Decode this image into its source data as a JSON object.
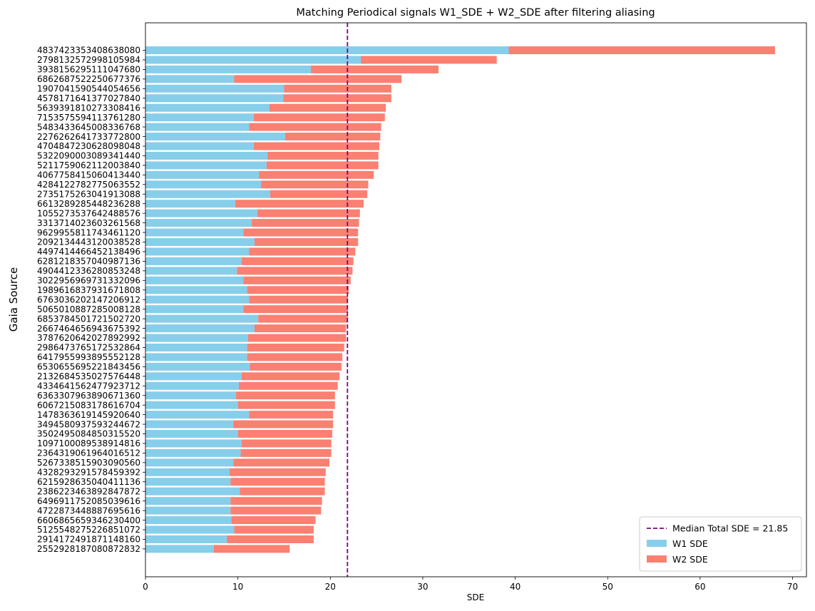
{
  "chart_data": {
    "type": "bar",
    "orientation": "horizontal",
    "stacked": true,
    "title": "Matching Periodical signals W1_SDE + W2_SDE after filtering aliasing",
    "xlabel": "SDE",
    "ylabel": "Gaia Source",
    "xlim": [
      0,
      71.5
    ],
    "xticks": [
      0,
      10,
      20,
      30,
      40,
      50,
      60,
      70
    ],
    "grid": false,
    "legend_position": "lower-right",
    "categories": [
      "4837423353408638080",
      "2798132572998105984",
      "3938156295111047680",
      "6862687522250677376",
      "1907041590544054656",
      "4578171641377027840",
      "5639391810273308416",
      "7153575594113761280",
      "5483433645008336768",
      "2276262641733772800",
      "4704847230628098048",
      "5322090003089341440",
      "5211759062112003840",
      "4067758415060413440",
      "4284122782775063552",
      "2735175263041913088",
      "6613289285448236288",
      "1055273537642488576",
      "3313714023603261568",
      "9629955811743461120",
      "2092134443120038528",
      "4497414466452138496",
      "6281218357040987136",
      "4904412336280853248",
      "3022956969731332096",
      "1989616837931671808",
      "6763036202147206912",
      "5065010887285008128",
      "6853784501721502720",
      "2667464656943675392",
      "3787620642027892992",
      "2986473765172532864",
      "6417955993895552128",
      "6530655695221843456",
      "2132684535027576448",
      "4334641562477923712",
      "6363307963890671360",
      "6067215083178616704",
      "1478363619145920640",
      "3494580937593244672",
      "3502495084850315520",
      "1097100089538914816",
      "2364319061964016512",
      "5267338515903090560",
      "4328293291578459392",
      "6215928635040411136",
      "2386223463892847872",
      "6496911752085039616",
      "4722873448887695616",
      "6606865659346230400",
      "5125548275226851072",
      "2914172491871148160",
      "2552928187080872832"
    ],
    "series": [
      {
        "name": "W1 SDE",
        "color": "#87ceeb",
        "values": [
          39.3,
          23.3,
          17.9,
          9.6,
          15.0,
          14.9,
          13.4,
          11.7,
          11.2,
          15.1,
          11.7,
          13.2,
          13.1,
          12.3,
          12.5,
          13.5,
          9.7,
          12.1,
          11.5,
          10.6,
          11.8,
          11.2,
          10.4,
          9.9,
          10.6,
          11.0,
          11.2,
          10.6,
          12.2,
          11.8,
          11.1,
          11.0,
          11.0,
          11.3,
          10.4,
          10.1,
          9.8,
          10.0,
          11.2,
          9.5,
          10.0,
          10.4,
          10.3,
          9.5,
          9.1,
          9.2,
          10.2,
          9.2,
          9.2,
          9.3,
          9.6,
          8.8,
          7.4
        ]
      },
      {
        "name": "W2 SDE",
        "color": "#fa8072",
        "values": [
          28.8,
          14.7,
          13.8,
          18.1,
          11.6,
          11.7,
          12.6,
          14.2,
          14.3,
          10.3,
          13.6,
          12.0,
          12.1,
          12.4,
          11.6,
          10.5,
          13.9,
          11.1,
          11.6,
          12.4,
          11.2,
          11.5,
          12.1,
          12.5,
          11.6,
          11.0,
          10.7,
          11.3,
          9.7,
          9.9,
          10.6,
          10.5,
          10.3,
          9.9,
          10.6,
          10.7,
          10.7,
          10.5,
          9.1,
          10.8,
          10.2,
          9.7,
          9.8,
          10.4,
          10.4,
          10.2,
          9.2,
          9.9,
          9.8,
          9.1,
          8.6,
          9.4,
          8.2
        ]
      }
    ],
    "median_line": {
      "value": 21.85,
      "label": "Median Total SDE = 21.85",
      "color": "#800080",
      "style": "dashed"
    }
  }
}
